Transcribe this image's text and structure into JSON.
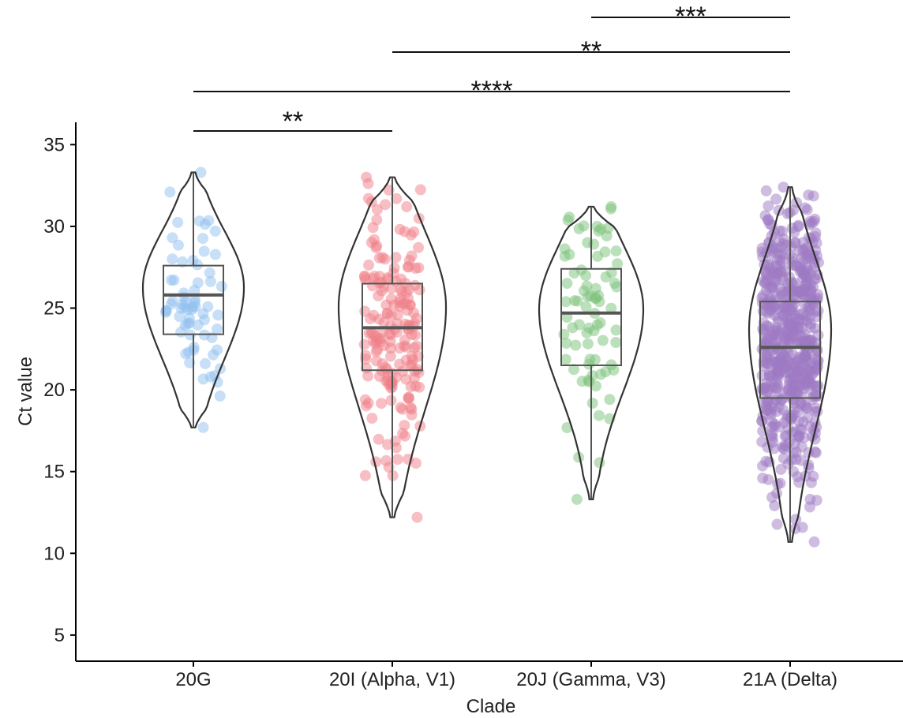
{
  "chart_data": {
    "type": "violin",
    "xlabel": "Clade",
    "ylabel": "Ct value",
    "ylim": [
      3.5,
      36.5
    ],
    "yticks": [
      "5",
      "10",
      "15",
      "20",
      "25",
      "30",
      "35"
    ],
    "grid": false,
    "legend": "none",
    "categories": [
      "20G",
      "20I (Alpha, V1)",
      "20J (Gamma, V3)",
      "21A (Delta)"
    ],
    "colors": [
      "#8fbff0",
      "#f07f88",
      "#7cc27a",
      "#9d7ac4"
    ],
    "summary": [
      {
        "category": "20G",
        "min": 17.7,
        "q1": 23.4,
        "median": 25.8,
        "q3": 27.6,
        "max": 33.3,
        "n_points": 70
      },
      {
        "category": "20I (Alpha, V1)",
        "min": 12.2,
        "q1": 21.2,
        "median": 23.8,
        "q3": 26.5,
        "max": 33.0,
        "n_points": 190
      },
      {
        "category": "20J (Gamma, V3)",
        "min": 13.3,
        "q1": 21.5,
        "median": 24.7,
        "q3": 27.4,
        "max": 31.2,
        "n_points": 80
      },
      {
        "category": "21A (Delta)",
        "min": 10.7,
        "q1": 19.5,
        "median": 22.6,
        "q3": 25.4,
        "max": 32.4,
        "n_points": 600
      }
    ],
    "comparisons": [
      {
        "from": "20G",
        "to": "20I (Alpha, V1)",
        "label": "**"
      },
      {
        "from": "20G",
        "to": "21A (Delta)",
        "label": "****"
      },
      {
        "from": "20I (Alpha, V1)",
        "to": "21A (Delta)",
        "label": "**"
      },
      {
        "from": "20J (Gamma, V3)",
        "to": "21A (Delta)",
        "label": "***"
      }
    ]
  }
}
